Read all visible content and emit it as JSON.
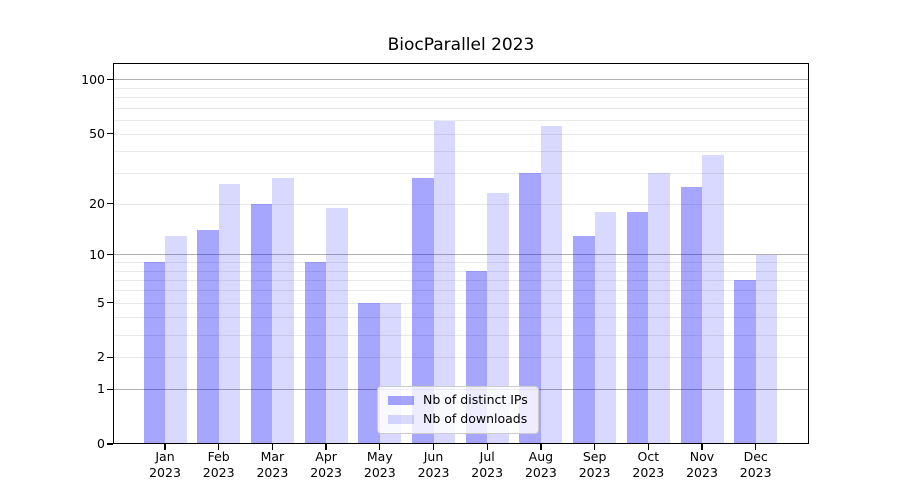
{
  "chart_data": {
    "type": "bar",
    "title": "BiocParallel 2023",
    "yscale": "log1p",
    "x_categories": [
      "Jan",
      "Feb",
      "Mar",
      "Apr",
      "May",
      "Jun",
      "Jul",
      "Aug",
      "Sep",
      "Oct",
      "Nov",
      "Dec"
    ],
    "x_year": "2023",
    "series": [
      {
        "name": "Nb of distinct IPs",
        "color": "rgba(0,0,255,0.35)",
        "values": [
          9,
          14,
          20,
          9,
          5,
          28,
          8,
          30,
          13,
          18,
          25,
          7
        ]
      },
      {
        "name": "Nb of downloads",
        "color": "rgba(0,0,255,0.15)",
        "values": [
          13,
          26,
          28,
          19,
          5,
          59,
          23,
          55,
          18,
          30,
          38,
          10
        ]
      }
    ],
    "yticks": [
      0,
      1,
      2,
      5,
      10,
      20,
      50,
      100
    ],
    "ylim": [
      0,
      124
    ],
    "gridlines_major": [
      1,
      10,
      100
    ],
    "gridlines_minor": [
      2,
      3,
      4,
      5,
      6,
      7,
      8,
      9,
      20,
      30,
      40,
      50,
      60,
      70,
      80,
      90
    ],
    "grid": true,
    "legend_position": "lower center"
  }
}
